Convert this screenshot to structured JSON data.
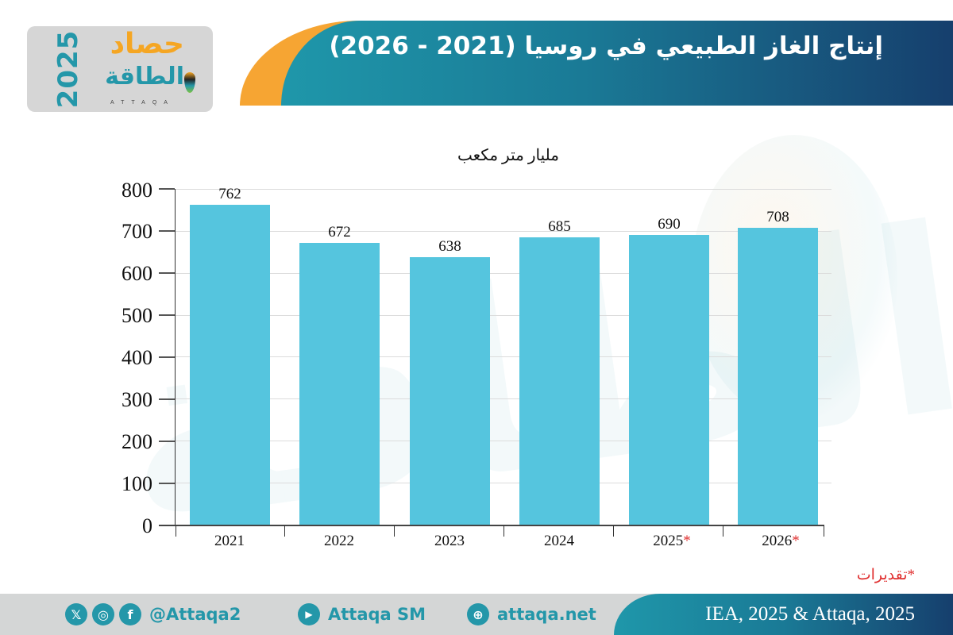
{
  "logo": {
    "year": "2025",
    "line1": "حصاد",
    "line2": "الطاقة",
    "sub": "ATTAQA"
  },
  "header": {
    "title": "إنتاج الغاز  الطبيعي في روسيا (2021 - 2026)"
  },
  "colors": {
    "bar": "#55c5de",
    "accent_orange": "#f6a533",
    "banner_start": "#1f97aa",
    "banner_end": "#163f6d",
    "estimate_marker": "#e03030"
  },
  "chart_data": {
    "type": "bar",
    "title": "إنتاج الغاز  الطبيعي في روسيا (2021 - 2026)",
    "ylabel": "مليار متر مكعب",
    "xlabel": "",
    "categories": [
      "2021",
      "2022",
      "2023",
      "2024",
      "2025*",
      "2026*"
    ],
    "values": [
      762,
      672,
      638,
      685,
      690,
      708
    ],
    "ylim": [
      0,
      800
    ],
    "yticks": [
      0,
      100,
      200,
      300,
      400,
      500,
      600,
      700,
      800
    ],
    "grid": true,
    "legend": null,
    "annotations": [
      "*تقديرات"
    ],
    "estimated_categories": [
      "2025",
      "2026"
    ]
  },
  "chart": {
    "unit_label": "مليار متر مكعب",
    "yticks": [
      "800",
      "700",
      "600",
      "500",
      "400",
      "300",
      "200",
      "100",
      "0"
    ],
    "bars": [
      {
        "year": "2021",
        "star": "",
        "value": "762"
      },
      {
        "year": "2022",
        "star": "",
        "value": "672"
      },
      {
        "year": "2023",
        "star": "",
        "value": "638"
      },
      {
        "year": "2024",
        "star": "",
        "value": "685"
      },
      {
        "year": "2025",
        "star": "*",
        "value": "690"
      },
      {
        "year": "2026",
        "star": "*",
        "value": "708"
      }
    ],
    "note": "*تقديرات"
  },
  "footer": {
    "social_handle": "@Attaqa2",
    "youtube": "Attaqa SM",
    "website": "attaqa.net",
    "source": "IEA, 2025 & Attaqa, 2025",
    "icons": {
      "x": "𝕏",
      "instagram": "◎",
      "facebook": "f",
      "youtube": "▶",
      "web": "⊕"
    }
  }
}
